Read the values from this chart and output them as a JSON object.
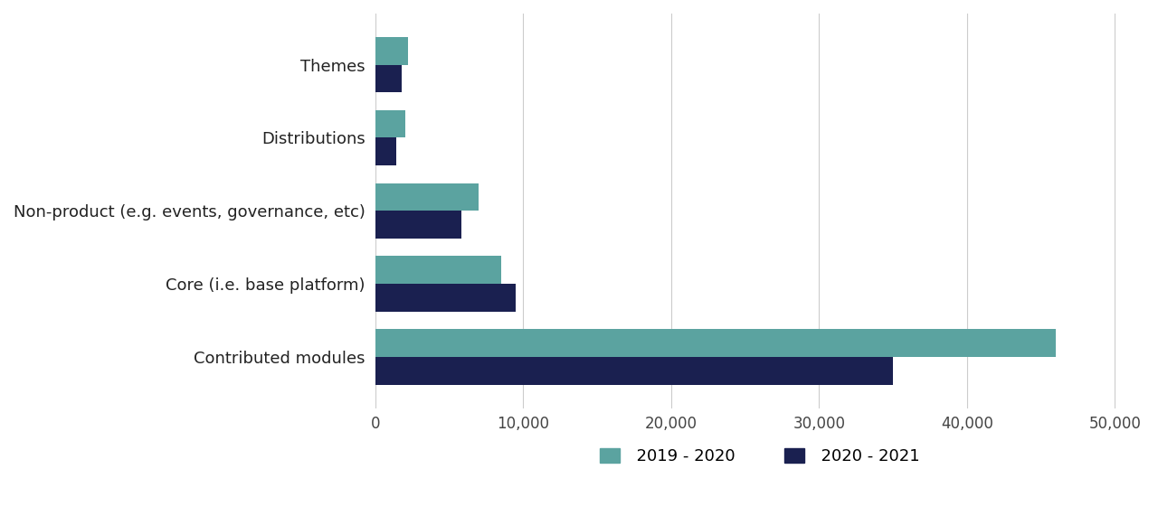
{
  "categories": [
    "Contributed modules",
    "Core (i.e. base platform)",
    "Non-product (e.g. events, governance, etc)",
    "Distributions",
    "Themes"
  ],
  "series": {
    "2019 - 2020": [
      46000,
      8500,
      7000,
      2000,
      2200
    ],
    "2020 - 2021": [
      35000,
      9500,
      5800,
      1400,
      1800
    ]
  },
  "colors": {
    "2019 - 2020": "#5ba3a0",
    "2020 - 2021": "#1a2050"
  },
  "xlim": [
    0,
    52000
  ],
  "xticks": [
    0,
    10000,
    20000,
    30000,
    40000,
    50000
  ],
  "xtick_labels": [
    "0",
    "10,000",
    "20,000",
    "30,000",
    "40,000",
    "50,000"
  ],
  "background_color": "#ffffff",
  "bar_height": 0.38,
  "legend_labels": [
    "2019 - 2020",
    "2020 - 2021"
  ],
  "fontsize_labels": 13,
  "fontsize_ticks": 12,
  "fontsize_legend": 13
}
